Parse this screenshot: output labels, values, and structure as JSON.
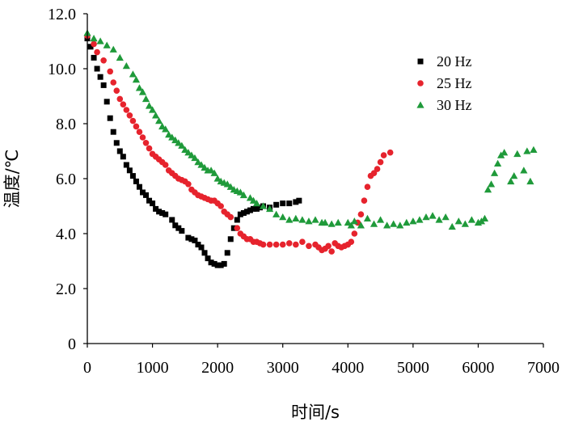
{
  "chart_data": {
    "type": "scatter",
    "title": "",
    "xlabel": "时间/s",
    "ylabel": "温度/℃",
    "xlim": [
      0,
      7000
    ],
    "ylim": [
      0,
      12
    ],
    "x_ticks": [
      "0",
      "1000",
      "2000",
      "3000",
      "4000",
      "5000",
      "6000",
      "7000"
    ],
    "y_ticks": [
      "0",
      "2.0",
      "4.0",
      "6.0",
      "8.0",
      "10.0",
      "12.0"
    ],
    "grid": false,
    "legend_position": "top-right",
    "series": [
      {
        "name": "20 Hz",
        "marker": "square",
        "color": "#000000",
        "points": [
          [
            0,
            11.1
          ],
          [
            50,
            10.8
          ],
          [
            100,
            10.4
          ],
          [
            150,
            10.0
          ],
          [
            200,
            9.7
          ],
          [
            250,
            9.4
          ],
          [
            300,
            8.8
          ],
          [
            350,
            8.2
          ],
          [
            400,
            7.7
          ],
          [
            450,
            7.3
          ],
          [
            500,
            7.0
          ],
          [
            550,
            6.8
          ],
          [
            600,
            6.5
          ],
          [
            650,
            6.3
          ],
          [
            700,
            6.1
          ],
          [
            750,
            5.9
          ],
          [
            800,
            5.7
          ],
          [
            850,
            5.5
          ],
          [
            900,
            5.4
          ],
          [
            950,
            5.2
          ],
          [
            1000,
            5.1
          ],
          [
            1050,
            4.9
          ],
          [
            1100,
            4.8
          ],
          [
            1150,
            4.75
          ],
          [
            1200,
            4.7
          ],
          [
            1300,
            4.5
          ],
          [
            1350,
            4.3
          ],
          [
            1400,
            4.2
          ],
          [
            1450,
            4.1
          ],
          [
            1550,
            3.85
          ],
          [
            1600,
            3.8
          ],
          [
            1650,
            3.75
          ],
          [
            1700,
            3.6
          ],
          [
            1750,
            3.5
          ],
          [
            1800,
            3.3
          ],
          [
            1850,
            3.1
          ],
          [
            1900,
            2.95
          ],
          [
            1950,
            2.9
          ],
          [
            2000,
            2.85
          ],
          [
            2050,
            2.85
          ],
          [
            2100,
            2.9
          ],
          [
            2150,
            3.3
          ],
          [
            2200,
            3.8
          ],
          [
            2250,
            4.2
          ],
          [
            2300,
            4.5
          ],
          [
            2350,
            4.7
          ],
          [
            2400,
            4.75
          ],
          [
            2450,
            4.8
          ],
          [
            2500,
            4.85
          ],
          [
            2550,
            4.9
          ],
          [
            2600,
            4.9
          ],
          [
            2650,
            4.95
          ],
          [
            2700,
            5.0
          ],
          [
            2800,
            4.95
          ],
          [
            2900,
            5.05
          ],
          [
            3000,
            5.1
          ],
          [
            3100,
            5.1
          ],
          [
            3200,
            5.15
          ],
          [
            3250,
            5.2
          ]
        ]
      },
      {
        "name": "25 Hz",
        "marker": "circle",
        "color": "#e6232d",
        "points": [
          [
            0,
            11.2
          ],
          [
            100,
            10.9
          ],
          [
            150,
            10.6
          ],
          [
            250,
            10.3
          ],
          [
            350,
            9.9
          ],
          [
            400,
            9.5
          ],
          [
            450,
            9.2
          ],
          [
            500,
            8.9
          ],
          [
            550,
            8.7
          ],
          [
            600,
            8.5
          ],
          [
            650,
            8.3
          ],
          [
            700,
            8.1
          ],
          [
            750,
            7.9
          ],
          [
            800,
            7.7
          ],
          [
            850,
            7.5
          ],
          [
            900,
            7.3
          ],
          [
            950,
            7.1
          ],
          [
            1000,
            6.9
          ],
          [
            1050,
            6.8
          ],
          [
            1100,
            6.7
          ],
          [
            1150,
            6.6
          ],
          [
            1200,
            6.5
          ],
          [
            1250,
            6.3
          ],
          [
            1300,
            6.2
          ],
          [
            1350,
            6.1
          ],
          [
            1400,
            6.0
          ],
          [
            1450,
            5.95
          ],
          [
            1500,
            5.9
          ],
          [
            1550,
            5.8
          ],
          [
            1600,
            5.6
          ],
          [
            1650,
            5.5
          ],
          [
            1700,
            5.4
          ],
          [
            1750,
            5.35
          ],
          [
            1800,
            5.3
          ],
          [
            1850,
            5.25
          ],
          [
            1900,
            5.2
          ],
          [
            1950,
            5.2
          ],
          [
            2000,
            5.1
          ],
          [
            2050,
            5.0
          ],
          [
            2100,
            4.8
          ],
          [
            2150,
            4.7
          ],
          [
            2200,
            4.6
          ],
          [
            2300,
            4.2
          ],
          [
            2350,
            4.0
          ],
          [
            2400,
            3.9
          ],
          [
            2450,
            3.8
          ],
          [
            2500,
            3.8
          ],
          [
            2550,
            3.7
          ],
          [
            2600,
            3.7
          ],
          [
            2650,
            3.65
          ],
          [
            2700,
            3.6
          ],
          [
            2800,
            3.6
          ],
          [
            2900,
            3.6
          ],
          [
            3000,
            3.6
          ],
          [
            3100,
            3.65
          ],
          [
            3200,
            3.6
          ],
          [
            3300,
            3.7
          ],
          [
            3400,
            3.55
          ],
          [
            3500,
            3.6
          ],
          [
            3550,
            3.5
          ],
          [
            3600,
            3.4
          ],
          [
            3650,
            3.45
          ],
          [
            3700,
            3.55
          ],
          [
            3750,
            3.35
          ],
          [
            3800,
            3.65
          ],
          [
            3850,
            3.55
          ],
          [
            3900,
            3.5
          ],
          [
            3950,
            3.55
          ],
          [
            4000,
            3.6
          ],
          [
            4050,
            3.7
          ],
          [
            4100,
            4.0
          ],
          [
            4150,
            4.4
          ],
          [
            4200,
            4.7
          ],
          [
            4250,
            5.2
          ],
          [
            4300,
            5.7
          ],
          [
            4350,
            6.1
          ],
          [
            4400,
            6.2
          ],
          [
            4450,
            6.35
          ],
          [
            4500,
            6.6
          ],
          [
            4550,
            6.85
          ],
          [
            4650,
            6.95
          ]
        ]
      },
      {
        "name": "30 Hz",
        "marker": "triangle",
        "color": "#1f9a3a",
        "points": [
          [
            0,
            11.3
          ],
          [
            100,
            11.1
          ],
          [
            200,
            11.0
          ],
          [
            300,
            10.85
          ],
          [
            400,
            10.7
          ],
          [
            500,
            10.4
          ],
          [
            600,
            10.1
          ],
          [
            700,
            9.8
          ],
          [
            750,
            9.6
          ],
          [
            800,
            9.3
          ],
          [
            850,
            9.15
          ],
          [
            900,
            8.9
          ],
          [
            950,
            8.65
          ],
          [
            1000,
            8.5
          ],
          [
            1050,
            8.3
          ],
          [
            1100,
            8.1
          ],
          [
            1150,
            7.9
          ],
          [
            1200,
            7.8
          ],
          [
            1250,
            7.6
          ],
          [
            1300,
            7.5
          ],
          [
            1350,
            7.4
          ],
          [
            1400,
            7.3
          ],
          [
            1450,
            7.2
          ],
          [
            1500,
            7.05
          ],
          [
            1550,
            6.95
          ],
          [
            1600,
            6.85
          ],
          [
            1650,
            6.75
          ],
          [
            1700,
            6.6
          ],
          [
            1750,
            6.5
          ],
          [
            1800,
            6.4
          ],
          [
            1850,
            6.3
          ],
          [
            1900,
            6.3
          ],
          [
            1950,
            6.2
          ],
          [
            2000,
            6.0
          ],
          [
            2050,
            5.9
          ],
          [
            2100,
            5.85
          ],
          [
            2150,
            5.8
          ],
          [
            2200,
            5.7
          ],
          [
            2250,
            5.6
          ],
          [
            2300,
            5.55
          ],
          [
            2350,
            5.5
          ],
          [
            2400,
            5.4
          ],
          [
            2500,
            5.3
          ],
          [
            2550,
            5.2
          ],
          [
            2600,
            5.1
          ],
          [
            2700,
            5.0
          ],
          [
            2800,
            4.9
          ],
          [
            2900,
            4.7
          ],
          [
            3000,
            4.6
          ],
          [
            3100,
            4.5
          ],
          [
            3200,
            4.55
          ],
          [
            3300,
            4.5
          ],
          [
            3400,
            4.45
          ],
          [
            3500,
            4.5
          ],
          [
            3600,
            4.4
          ],
          [
            3650,
            4.4
          ],
          [
            3750,
            4.35
          ],
          [
            3850,
            4.4
          ],
          [
            4000,
            4.4
          ],
          [
            4050,
            4.3
          ],
          [
            4100,
            4.45
          ],
          [
            4200,
            4.3
          ],
          [
            4300,
            4.55
          ],
          [
            4400,
            4.35
          ],
          [
            4500,
            4.5
          ],
          [
            4600,
            4.3
          ],
          [
            4700,
            4.35
          ],
          [
            4800,
            4.3
          ],
          [
            4900,
            4.4
          ],
          [
            5000,
            4.45
          ],
          [
            5100,
            4.5
          ],
          [
            5200,
            4.6
          ],
          [
            5300,
            4.65
          ],
          [
            5400,
            4.5
          ],
          [
            5500,
            4.6
          ],
          [
            5600,
            4.25
          ],
          [
            5700,
            4.45
          ],
          [
            5800,
            4.35
          ],
          [
            5900,
            4.5
          ],
          [
            6000,
            4.4
          ],
          [
            6050,
            4.45
          ],
          [
            6100,
            4.55
          ],
          [
            6150,
            5.6
          ],
          [
            6200,
            5.8
          ],
          [
            6250,
            6.2
          ],
          [
            6300,
            6.55
          ],
          [
            6350,
            6.85
          ],
          [
            6400,
            6.95
          ],
          [
            6500,
            5.9
          ],
          [
            6550,
            6.1
          ],
          [
            6600,
            6.9
          ],
          [
            6700,
            6.3
          ],
          [
            6750,
            7.0
          ],
          [
            6800,
            5.9
          ],
          [
            6850,
            7.05
          ]
        ]
      }
    ]
  }
}
